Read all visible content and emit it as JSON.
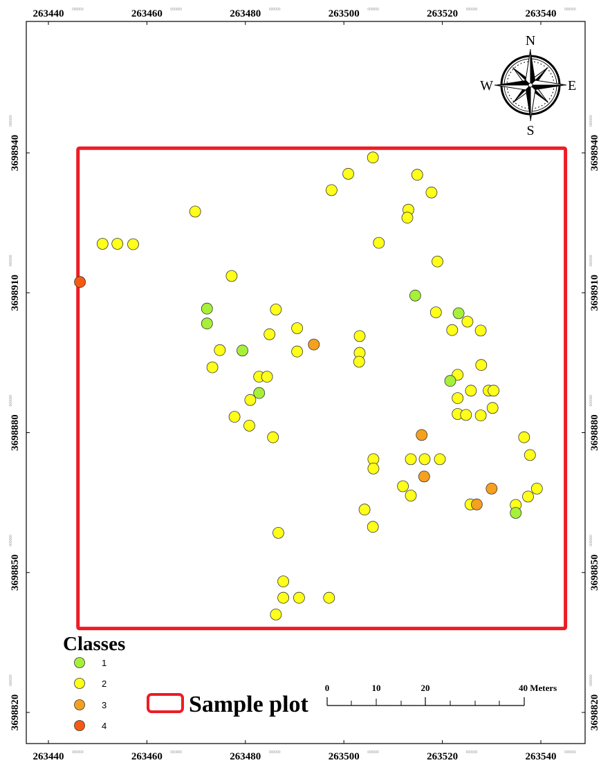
{
  "axes": {
    "x_ticks": [
      {
        "value": 263440,
        "label": "263440",
        "sup": "000000"
      },
      {
        "value": 263460,
        "label": "263460",
        "sup": "000000"
      },
      {
        "value": 263480,
        "label": "263480",
        "sup": "000000"
      },
      {
        "value": 263500,
        "label": "263500",
        "sup": "000000"
      },
      {
        "value": 263520,
        "label": "263520",
        "sup": "000000"
      },
      {
        "value": 263540,
        "label": "263540",
        "sup": "000000"
      }
    ],
    "y_ticks": [
      {
        "value": 3698940,
        "label": "3698940",
        "sup": "000000"
      },
      {
        "value": 3698910,
        "label": "3698910",
        "sup": "000000"
      },
      {
        "value": 3698880,
        "label": "3698880",
        "sup": "000000"
      },
      {
        "value": 3698850,
        "label": "3698850",
        "sup": "000000"
      },
      {
        "value": 3698820,
        "label": "3698820",
        "sup": "000000"
      }
    ]
  },
  "compass": {
    "n": "N",
    "s": "S",
    "e": "E",
    "w": "W"
  },
  "legend": {
    "title": "Classes",
    "classes": [
      {
        "label": "1",
        "color": "#a6f03a"
      },
      {
        "label": "2",
        "color": "#ffff19"
      },
      {
        "label": "3",
        "color": "#f5a01e"
      },
      {
        "label": "4",
        "color": "#f55a14"
      }
    ]
  },
  "sample_plot": {
    "label": "Sample plot",
    "color": "#ee1c24"
  },
  "scale_bar": {
    "labels": [
      "0",
      "10",
      "20",
      "40 Meters"
    ]
  },
  "chart_data": {
    "type": "scatter",
    "x_range": [
      263435,
      263548
    ],
    "y_range": [
      3698814,
      3698968
    ],
    "sample_plot_extent": {
      "x": [
        263446,
        263545
      ],
      "y": [
        3698838,
        3698941
      ]
    },
    "points": [
      {
        "x": 263505.9,
        "y": 3698939.0,
        "class": 2
      },
      {
        "x": 263500.9,
        "y": 3698935.5,
        "class": 2
      },
      {
        "x": 263497.5,
        "y": 3698932.0,
        "class": 2
      },
      {
        "x": 263514.9,
        "y": 3698935.3,
        "class": 2
      },
      {
        "x": 263517.8,
        "y": 3698931.5,
        "class": 2
      },
      {
        "x": 263513.1,
        "y": 3698927.8,
        "class": 2
      },
      {
        "x": 263512.9,
        "y": 3698926.1,
        "class": 2
      },
      {
        "x": 263469.8,
        "y": 3698927.4,
        "class": 2
      },
      {
        "x": 263451.0,
        "y": 3698920.5,
        "class": 2
      },
      {
        "x": 263454.0,
        "y": 3698920.5,
        "class": 2
      },
      {
        "x": 263457.2,
        "y": 3698920.4,
        "class": 2
      },
      {
        "x": 263507.1,
        "y": 3698920.7,
        "class": 2
      },
      {
        "x": 263519.0,
        "y": 3698916.7,
        "class": 2
      },
      {
        "x": 263446.4,
        "y": 3698912.3,
        "class": 4
      },
      {
        "x": 263477.2,
        "y": 3698913.6,
        "class": 2
      },
      {
        "x": 263514.5,
        "y": 3698909.4,
        "class": 1
      },
      {
        "x": 263472.2,
        "y": 3698906.6,
        "class": 1
      },
      {
        "x": 263486.2,
        "y": 3698906.4,
        "class": 2
      },
      {
        "x": 263518.7,
        "y": 3698905.8,
        "class": 2
      },
      {
        "x": 263523.3,
        "y": 3698905.6,
        "class": 1
      },
      {
        "x": 263525.1,
        "y": 3698903.8,
        "class": 2
      },
      {
        "x": 263472.2,
        "y": 3698903.4,
        "class": 1
      },
      {
        "x": 263490.5,
        "y": 3698902.4,
        "class": 2
      },
      {
        "x": 263522.0,
        "y": 3698902.0,
        "class": 2
      },
      {
        "x": 263527.8,
        "y": 3698901.9,
        "class": 2
      },
      {
        "x": 263484.9,
        "y": 3698901.1,
        "class": 2
      },
      {
        "x": 263503.2,
        "y": 3698900.7,
        "class": 2
      },
      {
        "x": 263493.9,
        "y": 3698898.9,
        "class": 3
      },
      {
        "x": 263474.8,
        "y": 3698897.7,
        "class": 2
      },
      {
        "x": 263479.4,
        "y": 3698897.6,
        "class": 1
      },
      {
        "x": 263490.5,
        "y": 3698897.4,
        "class": 2
      },
      {
        "x": 263503.2,
        "y": 3698897.1,
        "class": 2
      },
      {
        "x": 263503.1,
        "y": 3698895.2,
        "class": 2
      },
      {
        "x": 263527.9,
        "y": 3698894.5,
        "class": 2
      },
      {
        "x": 263473.3,
        "y": 3698894.0,
        "class": 2
      },
      {
        "x": 263523.1,
        "y": 3698892.4,
        "class": 2
      },
      {
        "x": 263482.8,
        "y": 3698892.0,
        "class": 2
      },
      {
        "x": 263484.4,
        "y": 3698892.0,
        "class": 2
      },
      {
        "x": 263521.6,
        "y": 3698891.1,
        "class": 1
      },
      {
        "x": 263525.8,
        "y": 3698889.0,
        "class": 2
      },
      {
        "x": 263529.4,
        "y": 3698889.0,
        "class": 2
      },
      {
        "x": 263530.4,
        "y": 3698889.0,
        "class": 2
      },
      {
        "x": 263482.8,
        "y": 3698888.5,
        "class": 1
      },
      {
        "x": 263523.1,
        "y": 3698887.4,
        "class": 2
      },
      {
        "x": 263481.0,
        "y": 3698887.0,
        "class": 2
      },
      {
        "x": 263530.2,
        "y": 3698885.3,
        "class": 2
      },
      {
        "x": 263523.1,
        "y": 3698884.0,
        "class": 2
      },
      {
        "x": 263524.8,
        "y": 3698883.8,
        "class": 2
      },
      {
        "x": 263527.8,
        "y": 3698883.7,
        "class": 2
      },
      {
        "x": 263477.8,
        "y": 3698883.4,
        "class": 2
      },
      {
        "x": 263480.8,
        "y": 3698881.5,
        "class": 2
      },
      {
        "x": 263515.8,
        "y": 3698879.5,
        "class": 3
      },
      {
        "x": 263536.6,
        "y": 3698879.0,
        "class": 2
      },
      {
        "x": 263485.6,
        "y": 3698879.0,
        "class": 2
      },
      {
        "x": 263537.8,
        "y": 3698875.2,
        "class": 2
      },
      {
        "x": 263506.0,
        "y": 3698874.3,
        "class": 2
      },
      {
        "x": 263513.6,
        "y": 3698874.3,
        "class": 2
      },
      {
        "x": 263516.4,
        "y": 3698874.3,
        "class": 2
      },
      {
        "x": 263519.5,
        "y": 3698874.3,
        "class": 2
      },
      {
        "x": 263506.0,
        "y": 3698872.3,
        "class": 2
      },
      {
        "x": 263516.3,
        "y": 3698870.6,
        "class": 3
      },
      {
        "x": 263512.0,
        "y": 3698868.5,
        "class": 2
      },
      {
        "x": 263530.0,
        "y": 3698868.0,
        "class": 3
      },
      {
        "x": 263539.2,
        "y": 3698868.0,
        "class": 2
      },
      {
        "x": 263513.6,
        "y": 3698866.5,
        "class": 2
      },
      {
        "x": 263537.4,
        "y": 3698866.3,
        "class": 2
      },
      {
        "x": 263525.7,
        "y": 3698864.6,
        "class": 2
      },
      {
        "x": 263527.0,
        "y": 3698864.6,
        "class": 3
      },
      {
        "x": 263534.9,
        "y": 3698864.5,
        "class": 2
      },
      {
        "x": 263504.2,
        "y": 3698863.5,
        "class": 2
      },
      {
        "x": 263534.9,
        "y": 3698862.8,
        "class": 1
      },
      {
        "x": 263505.9,
        "y": 3698859.8,
        "class": 2
      },
      {
        "x": 263486.7,
        "y": 3698858.5,
        "class": 2
      },
      {
        "x": 263487.7,
        "y": 3698848.1,
        "class": 2
      },
      {
        "x": 263487.7,
        "y": 3698844.6,
        "class": 2
      },
      {
        "x": 263490.9,
        "y": 3698844.6,
        "class": 2
      },
      {
        "x": 263497.0,
        "y": 3698844.6,
        "class": 2
      },
      {
        "x": 263486.2,
        "y": 3698841.0,
        "class": 2
      }
    ]
  }
}
